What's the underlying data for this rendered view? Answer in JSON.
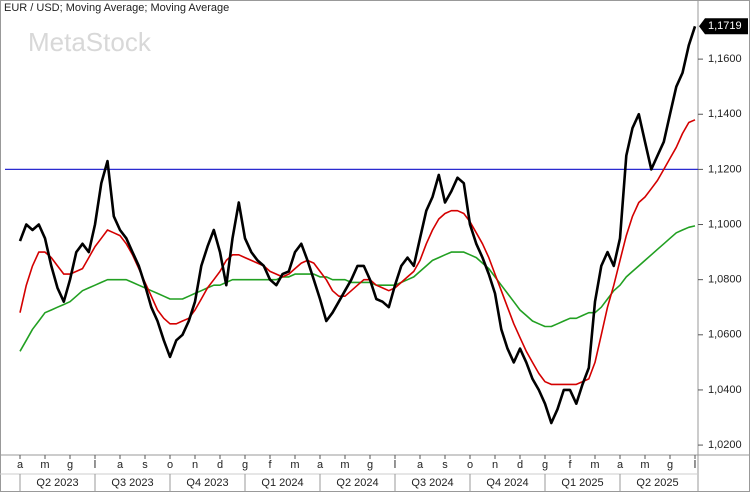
{
  "chart_data": {
    "type": "line",
    "title": "EUR / USD; Moving Average; Moving Average",
    "watermark": "MetaStock",
    "categories": [
      "a",
      null,
      null,
      null,
      "m",
      null,
      null,
      null,
      "g",
      null,
      null,
      null,
      "l",
      null,
      null,
      null,
      "a",
      null,
      null,
      null,
      "s",
      null,
      null,
      null,
      "o",
      null,
      null,
      null,
      "n",
      null,
      null,
      null,
      "d",
      null,
      null,
      null,
      "g",
      null,
      null,
      null,
      "f",
      null,
      null,
      null,
      "m",
      null,
      null,
      null,
      "a",
      null,
      null,
      null,
      "m",
      null,
      null,
      null,
      "g",
      null,
      null,
      null,
      "l",
      null,
      null,
      null,
      "a",
      null,
      null,
      null,
      "s",
      null,
      null,
      null,
      "o",
      null,
      null,
      null,
      "n",
      null,
      null,
      null,
      "d",
      null,
      null,
      null,
      "g",
      null,
      null,
      null,
      "f",
      null,
      null,
      null,
      "m",
      null,
      null,
      null,
      "a",
      null,
      null,
      null,
      "m",
      null,
      null,
      null,
      "g",
      null,
      null,
      null,
      "l"
    ],
    "quarters": [
      "Q2 2023",
      "Q3 2023",
      "Q4 2023",
      "Q1 2024",
      "Q2 2024",
      "Q3 2024",
      "Q4 2024",
      "Q1 2025",
      "Q2 2025"
    ],
    "series": [
      {
        "color": "#000000",
        "values": [
          1.094,
          1.1,
          1.098,
          1.1,
          1.095,
          1.085,
          1.077,
          1.072,
          1.08,
          1.09,
          1.093,
          1.09,
          1.1,
          1.115,
          1.123,
          1.103,
          1.098,
          1.095,
          1.09,
          1.085,
          1.078,
          1.07,
          1.065,
          1.058,
          1.052,
          1.058,
          1.06,
          1.065,
          1.072,
          1.085,
          1.092,
          1.098,
          1.09,
          1.078,
          1.095,
          1.108,
          1.095,
          1.09,
          1.087,
          1.085,
          1.08,
          1.078,
          1.082,
          1.083,
          1.09,
          1.093,
          1.087,
          1.08,
          1.073,
          1.065,
          1.068,
          1.072,
          1.076,
          1.08,
          1.085,
          1.085,
          1.08,
          1.073,
          1.072,
          1.07,
          1.078,
          1.085,
          1.088,
          1.085,
          1.095,
          1.105,
          1.11,
          1.118,
          1.108,
          1.112,
          1.117,
          1.115,
          1.1,
          1.093,
          1.088,
          1.082,
          1.075,
          1.062,
          1.055,
          1.05,
          1.055,
          1.05,
          1.044,
          1.04,
          1.035,
          1.028,
          1.033,
          1.04,
          1.04,
          1.035,
          1.042,
          1.048,
          1.072,
          1.085,
          1.09,
          1.085,
          1.095,
          1.125,
          1.135,
          1.14,
          1.13,
          1.12,
          1.125,
          1.13,
          1.14,
          1.15,
          1.155,
          1.165,
          1.1719
        ]
      },
      {
        "color": "#d40000",
        "values": [
          1.068,
          1.078,
          1.085,
          1.09,
          1.09,
          1.088,
          1.085,
          1.082,
          1.082,
          1.083,
          1.084,
          1.088,
          1.092,
          1.095,
          1.098,
          1.097,
          1.096,
          1.093,
          1.089,
          1.084,
          1.079,
          1.074,
          1.069,
          1.066,
          1.064,
          1.064,
          1.065,
          1.066,
          1.069,
          1.073,
          1.077,
          1.08,
          1.083,
          1.087,
          1.089,
          1.089,
          1.088,
          1.087,
          1.086,
          1.085,
          1.083,
          1.082,
          1.081,
          1.082,
          1.084,
          1.086,
          1.087,
          1.086,
          1.083,
          1.08,
          1.076,
          1.074,
          1.074,
          1.076,
          1.078,
          1.08,
          1.08,
          1.078,
          1.077,
          1.076,
          1.077,
          1.079,
          1.081,
          1.083,
          1.087,
          1.093,
          1.098,
          1.102,
          1.104,
          1.105,
          1.105,
          1.104,
          1.101,
          1.097,
          1.093,
          1.088,
          1.082,
          1.076,
          1.07,
          1.064,
          1.059,
          1.054,
          1.05,
          1.046,
          1.043,
          1.042,
          1.042,
          1.042,
          1.042,
          1.042,
          1.043,
          1.044,
          1.05,
          1.06,
          1.07,
          1.078,
          1.087,
          1.096,
          1.103,
          1.108,
          1.11,
          1.113,
          1.116,
          1.12,
          1.124,
          1.128,
          1.133,
          1.137,
          1.138
        ]
      },
      {
        "color": "#22a022",
        "values": [
          1.054,
          1.058,
          1.062,
          1.065,
          1.068,
          1.069,
          1.07,
          1.071,
          1.072,
          1.074,
          1.076,
          1.077,
          1.078,
          1.079,
          1.08,
          1.08,
          1.08,
          1.08,
          1.079,
          1.078,
          1.077,
          1.076,
          1.075,
          1.074,
          1.073,
          1.073,
          1.073,
          1.074,
          1.075,
          1.076,
          1.077,
          1.078,
          1.078,
          1.079,
          1.08,
          1.08,
          1.08,
          1.08,
          1.08,
          1.08,
          1.08,
          1.08,
          1.081,
          1.081,
          1.082,
          1.082,
          1.082,
          1.082,
          1.081,
          1.081,
          1.08,
          1.08,
          1.08,
          1.079,
          1.079,
          1.079,
          1.079,
          1.078,
          1.078,
          1.078,
          1.078,
          1.079,
          1.08,
          1.081,
          1.083,
          1.085,
          1.087,
          1.088,
          1.089,
          1.09,
          1.09,
          1.09,
          1.089,
          1.088,
          1.086,
          1.084,
          1.081,
          1.078,
          1.075,
          1.072,
          1.069,
          1.067,
          1.065,
          1.064,
          1.063,
          1.063,
          1.064,
          1.065,
          1.066,
          1.066,
          1.067,
          1.068,
          1.068,
          1.07,
          1.073,
          1.076,
          1.078,
          1.081,
          1.083,
          1.085,
          1.087,
          1.089,
          1.091,
          1.093,
          1.095,
          1.097,
          1.098,
          1.099,
          1.0995
        ]
      }
    ],
    "hline": {
      "value": 1.12,
      "color": "#2b2bd0"
    },
    "last_value": {
      "value": 1.1719,
      "label": "1,1719"
    },
    "ylim": [
      1.0164,
      1.176
    ],
    "yticks": [
      {
        "value": 1.02,
        "label": "1,0200"
      },
      {
        "value": 1.04,
        "label": "1,0400"
      },
      {
        "value": 1.06,
        "label": "1,0600"
      },
      {
        "value": 1.08,
        "label": "1,0800"
      },
      {
        "value": 1.1,
        "label": "1,1000"
      },
      {
        "value": 1.12,
        "label": "1,1200"
      },
      {
        "value": 1.14,
        "label": "1,1400"
      },
      {
        "value": 1.16,
        "label": "1,1600"
      }
    ]
  }
}
